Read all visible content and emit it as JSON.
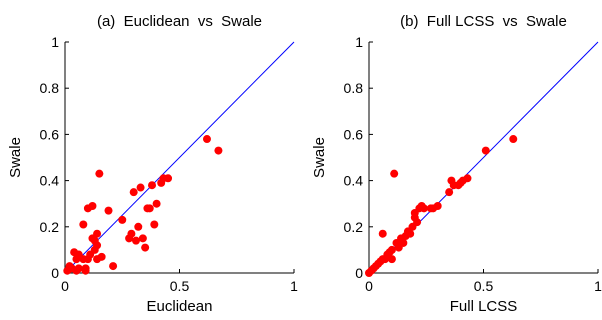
{
  "chart_data": [
    {
      "type": "scatter",
      "title": "(a)  Euclidean  vs  Swale",
      "xlabel": "Euclidean",
      "ylabel": "Swale",
      "xlim": [
        0,
        1
      ],
      "ylim": [
        0,
        1
      ],
      "xticks": [
        "0",
        "0.5",
        "1"
      ],
      "yticks": [
        "0",
        "0.2",
        "0.4",
        "0.6",
        "0.8",
        "1"
      ],
      "reference_line": {
        "x": [
          0,
          1
        ],
        "y": [
          0,
          1
        ],
        "color": "#0000ff"
      },
      "marker_color": "#ff0000",
      "points": [
        [
          0.01,
          0.01
        ],
        [
          0.02,
          0.03
        ],
        [
          0.03,
          0.02
        ],
        [
          0.04,
          0.09
        ],
        [
          0.05,
          0.06
        ],
        [
          0.05,
          0.01
        ],
        [
          0.06,
          0.02
        ],
        [
          0.06,
          0.08
        ],
        [
          0.08,
          0.06
        ],
        [
          0.08,
          0.21
        ],
        [
          0.09,
          0.01
        ],
        [
          0.09,
          0.02
        ],
        [
          0.1,
          0.28
        ],
        [
          0.1,
          0.06
        ],
        [
          0.11,
          0.08
        ],
        [
          0.12,
          0.29
        ],
        [
          0.12,
          0.15
        ],
        [
          0.13,
          0.14
        ],
        [
          0.13,
          0.1
        ],
        [
          0.14,
          0.06
        ],
        [
          0.14,
          0.12
        ],
        [
          0.14,
          0.17
        ],
        [
          0.15,
          0.43
        ],
        [
          0.16,
          0.07
        ],
        [
          0.19,
          0.27
        ],
        [
          0.21,
          0.03
        ],
        [
          0.25,
          0.23
        ],
        [
          0.28,
          0.15
        ],
        [
          0.29,
          0.17
        ],
        [
          0.3,
          0.35
        ],
        [
          0.31,
          0.14
        ],
        [
          0.32,
          0.2
        ],
        [
          0.33,
          0.37
        ],
        [
          0.34,
          0.15
        ],
        [
          0.35,
          0.11
        ],
        [
          0.36,
          0.28
        ],
        [
          0.37,
          0.28
        ],
        [
          0.38,
          0.38
        ],
        [
          0.39,
          0.21
        ],
        [
          0.4,
          0.3
        ],
        [
          0.42,
          0.39
        ],
        [
          0.43,
          0.41
        ],
        [
          0.45,
          0.41
        ],
        [
          0.62,
          0.58
        ],
        [
          0.67,
          0.53
        ]
      ]
    },
    {
      "type": "scatter",
      "title": "(b)  Full LCSS  vs  Swale",
      "xlabel": "Full LCSS",
      "ylabel": "Swale",
      "xlim": [
        0,
        1
      ],
      "ylim": [
        0,
        1
      ],
      "xticks": [
        "0",
        "0.5",
        "1"
      ],
      "yticks": [
        "0",
        "0.2",
        "0.4",
        "0.6",
        "0.8",
        "1"
      ],
      "reference_line": {
        "x": [
          0,
          1
        ],
        "y": [
          0,
          1
        ],
        "color": "#0000ff"
      },
      "marker_color": "#ff0000",
      "points": [
        [
          0.0,
          0.0
        ],
        [
          0.01,
          0.01
        ],
        [
          0.02,
          0.02
        ],
        [
          0.03,
          0.03
        ],
        [
          0.04,
          0.04
        ],
        [
          0.05,
          0.05
        ],
        [
          0.06,
          0.06
        ],
        [
          0.06,
          0.17
        ],
        [
          0.07,
          0.06
        ],
        [
          0.08,
          0.08
        ],
        [
          0.09,
          0.09
        ],
        [
          0.1,
          0.1
        ],
        [
          0.1,
          0.06
        ],
        [
          0.11,
          0.43
        ],
        [
          0.12,
          0.13
        ],
        [
          0.13,
          0.11
        ],
        [
          0.14,
          0.15
        ],
        [
          0.15,
          0.13
        ],
        [
          0.16,
          0.16
        ],
        [
          0.17,
          0.18
        ],
        [
          0.18,
          0.17
        ],
        [
          0.19,
          0.2
        ],
        [
          0.2,
          0.24
        ],
        [
          0.2,
          0.26
        ],
        [
          0.21,
          0.22
        ],
        [
          0.22,
          0.28
        ],
        [
          0.23,
          0.29
        ],
        [
          0.24,
          0.28
        ],
        [
          0.27,
          0.28
        ],
        [
          0.28,
          0.28
        ],
        [
          0.3,
          0.29
        ],
        [
          0.35,
          0.35
        ],
        [
          0.36,
          0.4
        ],
        [
          0.37,
          0.38
        ],
        [
          0.39,
          0.38
        ],
        [
          0.4,
          0.39
        ],
        [
          0.41,
          0.4
        ],
        [
          0.43,
          0.41
        ],
        [
          0.51,
          0.53
        ],
        [
          0.63,
          0.58
        ]
      ]
    }
  ]
}
